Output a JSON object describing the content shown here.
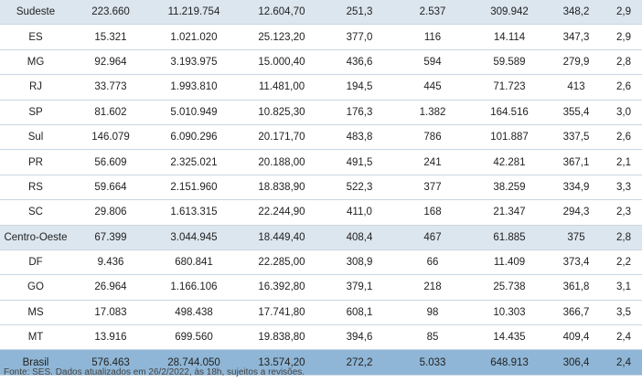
{
  "rows": [
    {
      "type": "region",
      "name": "Sudeste",
      "c1": "223.660",
      "c2": "11.219.754",
      "c3": "12.604,70",
      "c4": "251,3",
      "c5": "2.537",
      "c6": "309.942",
      "c7": "348,2",
      "c8": "2,9"
    },
    {
      "type": "state",
      "name": "ES",
      "c1": "15.321",
      "c2": "1.021.020",
      "c3": "25.123,20",
      "c4": "377,0",
      "c5": "116",
      "c6": "14.114",
      "c7": "347,3",
      "c8": "2,9"
    },
    {
      "type": "state",
      "name": "MG",
      "c1": "92.964",
      "c2": "3.193.975",
      "c3": "15.000,40",
      "c4": "436,6",
      "c5": "594",
      "c6": "59.589",
      "c7": "279,9",
      "c8": "2,8"
    },
    {
      "type": "state",
      "name": "RJ",
      "c1": "33.773",
      "c2": "1.993.810",
      "c3": "11.481,00",
      "c4": "194,5",
      "c5": "445",
      "c6": "71.723",
      "c7": "413",
      "c8": "2,6"
    },
    {
      "type": "state",
      "name": "SP",
      "c1": "81.602",
      "c2": "5.010.949",
      "c3": "10.825,30",
      "c4": "176,3",
      "c5": "1.382",
      "c6": "164.516",
      "c7": "355,4",
      "c8": "3,0"
    },
    {
      "type": "state",
      "name": "Sul",
      "c1": "146.079",
      "c2": "6.090.296",
      "c3": "20.171,70",
      "c4": "483,8",
      "c5": "786",
      "c6": "101.887",
      "c7": "337,5",
      "c8": "2,6"
    },
    {
      "type": "state",
      "name": "PR",
      "c1": "56.609",
      "c2": "2.325.021",
      "c3": "20.188,00",
      "c4": "491,5",
      "c5": "241",
      "c6": "42.281",
      "c7": "367,1",
      "c8": "2,1"
    },
    {
      "type": "state",
      "name": "RS",
      "c1": "59.664",
      "c2": "2.151.960",
      "c3": "18.838,90",
      "c4": "522,3",
      "c5": "377",
      "c6": "38.259",
      "c7": "334,9",
      "c8": "3,3"
    },
    {
      "type": "state",
      "name": "SC",
      "c1": "29.806",
      "c2": "1.613.315",
      "c3": "22.244,90",
      "c4": "411,0",
      "c5": "168",
      "c6": "21.347",
      "c7": "294,3",
      "c8": "2,3"
    },
    {
      "type": "region",
      "name": "Centro-Oeste",
      "c1": "67.399",
      "c2": "3.044.945",
      "c3": "18.449,40",
      "c4": "408,4",
      "c5": "467",
      "c6": "61.885",
      "c7": "375",
      "c8": "2,8"
    },
    {
      "type": "state",
      "name": "DF",
      "c1": "9.436",
      "c2": "680.841",
      "c3": "22.285,00",
      "c4": "308,9",
      "c5": "66",
      "c6": "11.409",
      "c7": "373,4",
      "c8": "2,2"
    },
    {
      "type": "state",
      "name": "GO",
      "c1": "26.964",
      "c2": "1.166.106",
      "c3": "16.392,80",
      "c4": "379,1",
      "c5": "218",
      "c6": "25.738",
      "c7": "361,8",
      "c8": "3,1"
    },
    {
      "type": "state",
      "name": "MS",
      "c1": "17.083",
      "c2": "498.438",
      "c3": "17.741,80",
      "c4": "608,1",
      "c5": "98",
      "c6": "10.303",
      "c7": "366,7",
      "c8": "3,5"
    },
    {
      "type": "state",
      "name": "MT",
      "c1": "13.916",
      "c2": "699.560",
      "c3": "19.838,80",
      "c4": "394,6",
      "c5": "85",
      "c6": "14.435",
      "c7": "409,4",
      "c8": "2,4"
    },
    {
      "type": "total",
      "name": "Brasil",
      "c1": "576.463",
      "c2": "28.744.050",
      "c3": "13.574,20",
      "c4": "272,2",
      "c5": "5.033",
      "c6": "648.913",
      "c7": "306,4",
      "c8": "2,4"
    }
  ],
  "source": "Fonte: SES. Dados atualizados em 26/2/2022, às 18h, sujeitos a revisões."
}
